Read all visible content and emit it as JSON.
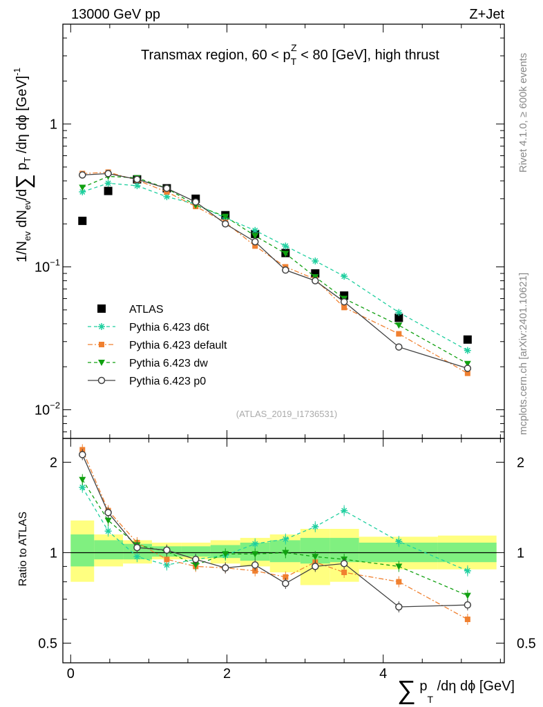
{
  "header": {
    "left": "13000 GeV pp",
    "right": "Z+Jet"
  },
  "side_labels": {
    "rivet": "Rivet 4.1.0, ≥ 600k events",
    "mcplots": "mcplots.cern.ch [arXiv:2401.10621]"
  },
  "chart_data": [
    {
      "type": "scatter",
      "title": "Transmax region, 60 < p_T^Z < 80 [GeV], high thrust",
      "title_parts": {
        "a": "Transmax region, 60 < p",
        "sub": "T",
        "sup": "Z",
        "b": " < 80 [GeV], high thrust"
      },
      "ylabel": "1/N_ev dN_ev/d∑ p_T /dη dϕ [GeV]^-1",
      "ylabel_parts": {
        "p1": "1/N",
        "s1": "ev",
        "p2": " dN",
        "s2": "ev",
        "p3": "/d",
        "sum": "∑",
        "p4": " p",
        "s4": "T",
        "p5": " /dη dϕ  [GeV]",
        "sup": "-1"
      },
      "yscale": "log",
      "ylim": [
        0.0063,
        5.0
      ],
      "xlim": [
        -0.1,
        5.55
      ],
      "yticks": [
        {
          "value": 1,
          "label": "1",
          "exp": ""
        },
        {
          "value": 0.1,
          "label": "10",
          "exp": "−1"
        },
        {
          "value": 0.01,
          "label": "10",
          "exp": "−2"
        }
      ],
      "watermark": "(ATLAS_2019_I1736531)",
      "legend_position": "center-left",
      "x": [
        0.15,
        0.48,
        0.85,
        1.23,
        1.6,
        1.98,
        2.36,
        2.75,
        3.13,
        3.5,
        4.2,
        5.08
      ],
      "series": [
        {
          "name": "ATLAS",
          "values": [
            0.21,
            0.34,
            0.41,
            0.355,
            0.3,
            0.23,
            0.17,
            0.125,
            0.09,
            0.063,
            0.044,
            0.031
          ],
          "color": "#000000",
          "marker": "square",
          "line": "none"
        },
        {
          "name": "Pythia 6.423 d6t",
          "values": [
            0.335,
            0.385,
            0.37,
            0.31,
            0.275,
            0.22,
            0.18,
            0.14,
            0.11,
            0.086,
            0.048,
            0.026
          ],
          "color": "#1fcf9f",
          "marker": "star",
          "line": "dashed"
        },
        {
          "name": "Pythia 6.423 default",
          "values": [
            0.45,
            0.46,
            0.405,
            0.335,
            0.265,
            0.205,
            0.14,
            0.1,
            0.082,
            0.052,
            0.034,
            0.018
          ],
          "color": "#f08030",
          "marker": "square-small",
          "line": "dashdot"
        },
        {
          "name": "Pythia 6.423 dw",
          "values": [
            0.36,
            0.43,
            0.42,
            0.355,
            0.27,
            0.225,
            0.165,
            0.124,
            0.085,
            0.06,
            0.039,
            0.021
          ],
          "color": "#10a010",
          "marker": "triangle-down",
          "line": "dashed"
        },
        {
          "name": "Pythia 6.423 p0",
          "values": [
            0.44,
            0.45,
            0.41,
            0.355,
            0.285,
            0.2,
            0.15,
            0.095,
            0.08,
            0.057,
            0.0275,
            0.0195
          ],
          "color": "#404040",
          "marker": "circle-open",
          "line": "solid"
        }
      ]
    },
    {
      "type": "line",
      "ylabel": "Ratio to ATLAS",
      "xlabel": "∑ p_T /dη dϕ [GeV]",
      "xlabel_parts": {
        "sum": "∑",
        "p": " p",
        "sub": "T",
        "rest": " /dη dϕ [GeV]"
      },
      "yscale": "log",
      "ylim": [
        0.43,
        2.4
      ],
      "xlim": [
        -0.1,
        5.55
      ],
      "xticks": [
        0,
        2,
        4
      ],
      "yticks": [
        {
          "value": 0.5,
          "label": "0.5"
        },
        {
          "value": 1,
          "label": "1"
        },
        {
          "value": 2,
          "label": "2"
        }
      ],
      "x": [
        0.15,
        0.48,
        0.85,
        1.23,
        1.6,
        1.98,
        2.36,
        2.75,
        3.13,
        3.5,
        4.2,
        5.08
      ],
      "bin_edges": [
        0.0,
        0.3,
        0.67,
        1.04,
        1.42,
        1.79,
        2.17,
        2.55,
        2.94,
        3.32,
        3.69,
        4.7,
        5.45
      ],
      "band_inner": [
        [
          0.9,
          1.15
        ],
        [
          0.95,
          1.1
        ],
        [
          0.95,
          1.07
        ],
        [
          0.97,
          1.05
        ],
        [
          0.97,
          1.05
        ],
        [
          0.96,
          1.06
        ],
        [
          0.94,
          1.08
        ],
        [
          0.93,
          1.1
        ],
        [
          0.92,
          1.12
        ],
        [
          0.93,
          1.12
        ],
        [
          0.93,
          1.08
        ],
        [
          0.93,
          1.08
        ]
      ],
      "band_outer": [
        [
          0.8,
          1.28
        ],
        [
          0.9,
          1.15
        ],
        [
          0.92,
          1.1
        ],
        [
          0.95,
          1.08
        ],
        [
          0.95,
          1.08
        ],
        [
          0.92,
          1.1
        ],
        [
          0.9,
          1.12
        ],
        [
          0.86,
          1.15
        ],
        [
          0.78,
          1.2
        ],
        [
          0.8,
          1.2
        ],
        [
          0.88,
          1.13
        ],
        [
          0.88,
          1.14
        ]
      ],
      "series": [
        {
          "name": "Pythia 6.423 d6t",
          "values": [
            1.65,
            1.18,
            0.97,
            0.91,
            0.95,
            0.98,
            1.07,
            1.11,
            1.22,
            1.38,
            1.09,
            0.87
          ],
          "color": "#1fcf9f",
          "marker": "star",
          "line": "dashed"
        },
        {
          "name": "Pythia 6.423 default",
          "values": [
            2.2,
            1.38,
            1.08,
            0.95,
            0.9,
            0.89,
            0.87,
            0.83,
            0.93,
            0.86,
            0.8,
            0.6
          ],
          "color": "#f08030",
          "marker": "square-small",
          "line": "dashdot"
        },
        {
          "name": "Pythia 6.423 dw",
          "values": [
            1.75,
            1.28,
            1.06,
            1.01,
            0.91,
            0.99,
            0.99,
            1.0,
            0.97,
            0.95,
            0.9,
            0.72
          ],
          "color": "#10a010",
          "marker": "triangle-down",
          "line": "dashed"
        },
        {
          "name": "Pythia 6.423 p0",
          "values": [
            2.12,
            1.36,
            1.04,
            1.02,
            0.95,
            0.89,
            0.91,
            0.79,
            0.9,
            0.92,
            0.66,
            0.67
          ],
          "color": "#404040",
          "marker": "circle-open",
          "line": "solid"
        }
      ]
    }
  ]
}
